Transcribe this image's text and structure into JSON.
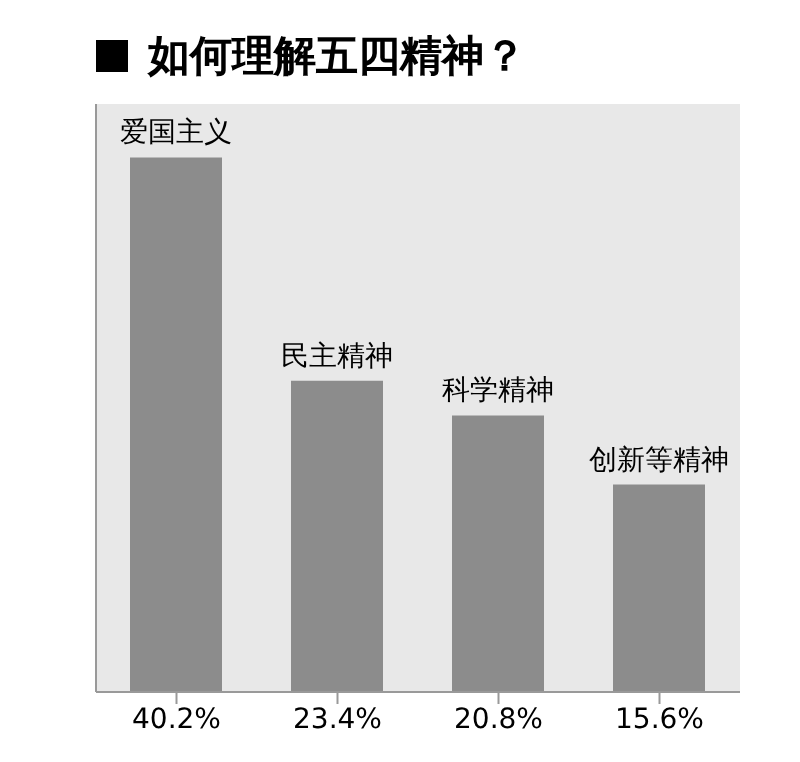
{
  "chart_data": {
    "type": "bar",
    "title": "如何理解五四精神？",
    "categories": [
      "爱国主义",
      "民主精神",
      "科学精神",
      "创新等精神"
    ],
    "values": [
      40.2,
      23.4,
      20.8,
      15.6
    ],
    "value_labels": [
      "40.2%",
      "23.4%",
      "20.8%",
      "15.6%"
    ],
    "color": "#8c8c8c",
    "tick_labels": "x"
  }
}
